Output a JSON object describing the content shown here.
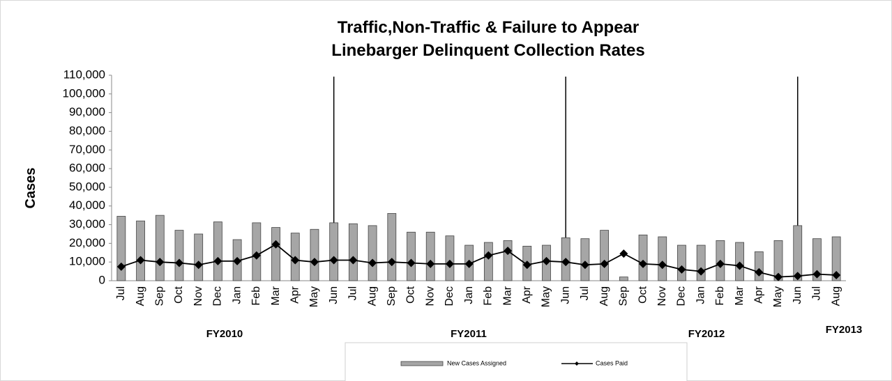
{
  "chart_data": {
    "type": "bar_line",
    "title": "Traffic,Non-Traffic & Failure to Appear",
    "subtitle": "Linebarger Delinquent Collection Rates",
    "y_label": "Cases",
    "categories": [
      "Jul",
      "Aug",
      "Sep",
      "Oct",
      "Nov",
      "Dec",
      "Jan",
      "Feb",
      "Mar",
      "Apr",
      "May",
      "Jun",
      "Jul",
      "Aug",
      "Sep",
      "Oct",
      "Nov",
      "Dec",
      "Jan",
      "Feb",
      "Mar",
      "Apr",
      "May",
      "Jun",
      "Jul",
      "Aug",
      "Sep",
      "Oct",
      "Nov",
      "Dec",
      "Jan",
      "Feb",
      "Mar",
      "Apr",
      "May",
      "Jun",
      "Jul",
      "Aug"
    ],
    "groups": [
      "FY2010",
      "FY2011",
      "FY2012",
      "FY2013"
    ],
    "series": [
      {
        "name": "New Cases Assigned",
        "type": "bar",
        "color": "#a6a6a6",
        "values": [
          34500,
          32000,
          35000,
          27000,
          25000,
          31500,
          22000,
          31000,
          28500,
          25500,
          27500,
          31000,
          30500,
          29500,
          36000,
          26000,
          26000,
          24000,
          19000,
          20500,
          21500,
          18500,
          19000,
          23000,
          22500,
          27000,
          2000,
          24500,
          23500,
          19000,
          19000,
          21500,
          20500,
          15500,
          21500,
          29500,
          22500,
          23500
        ]
      },
      {
        "name": "Cases Paid",
        "type": "line",
        "color": "#000000",
        "values": [
          7500,
          11000,
          10000,
          9500,
          8500,
          10500,
          10500,
          13500,
          19500,
          11000,
          10000,
          11000,
          11000,
          9500,
          10000,
          9500,
          9000,
          9000,
          9000,
          13500,
          16000,
          8500,
          10500,
          10000,
          8500,
          9000,
          14500,
          9000,
          8500,
          6000,
          5000,
          9000,
          8000,
          4500,
          2000,
          2500,
          3500,
          3000
        ]
      }
    ],
    "ylim": [
      0,
      110000
    ],
    "yticks": [
      0,
      {
        "value": 10000,
        "label": "10,000"
      },
      {
        "value": 20000,
        "label": "20,000"
      },
      {
        "value": 30000,
        "label": "30,000"
      },
      {
        "value": 40000,
        "label": "40,000"
      },
      {
        "value": 50000,
        "label": "50,000"
      },
      {
        "value": 60000,
        "label": "60,000"
      },
      {
        "value": 70000,
        "label": "70,000"
      },
      {
        "value": 80000,
        "label": "80,000"
      },
      {
        "value": 90000,
        "label": "90,000"
      },
      {
        "value": 100000,
        "label": "100,000"
      },
      {
        "value": 110000,
        "label": "110,000"
      }
    ],
    "grid": false,
    "legend": "bottom"
  }
}
